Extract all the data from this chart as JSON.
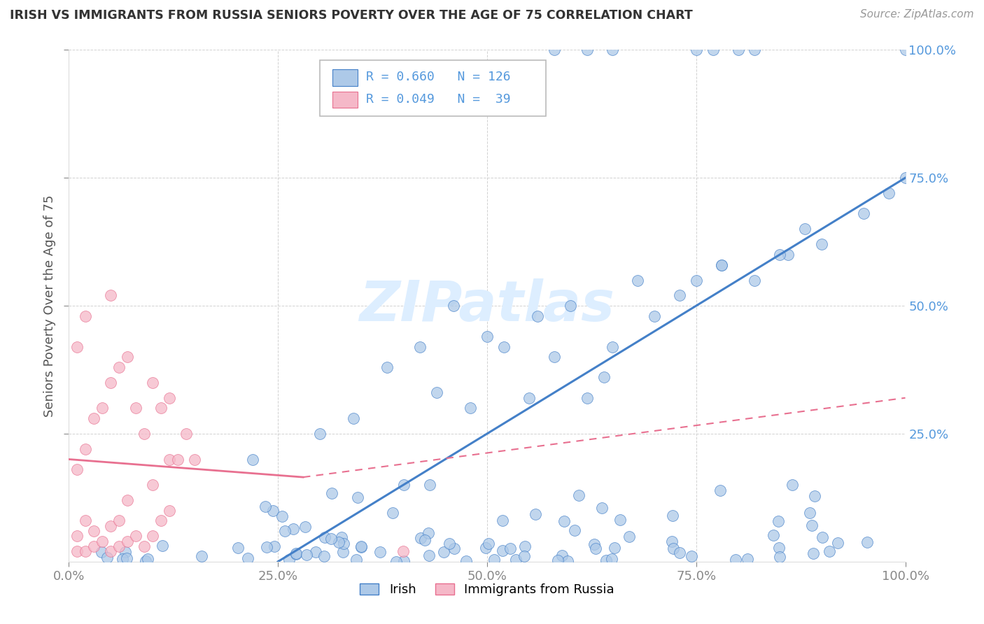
{
  "title": "IRISH VS IMMIGRANTS FROM RUSSIA SENIORS POVERTY OVER THE AGE OF 75 CORRELATION CHART",
  "source": "Source: ZipAtlas.com",
  "ylabel": "Seniors Poverty Over the Age of 75",
  "xlim": [
    0,
    1
  ],
  "ylim": [
    0,
    1
  ],
  "xticks": [
    0,
    0.25,
    0.5,
    0.75,
    1.0
  ],
  "yticks": [
    0.25,
    0.5,
    0.75,
    1.0
  ],
  "xticklabels": [
    "0.0%",
    "25.0%",
    "50.0%",
    "75.0%",
    "100.0%"
  ],
  "yticklabels_right": [
    "25.0%",
    "50.0%",
    "75.0%",
    "100.0%"
  ],
  "legend_line1": "R = 0.660   N = 126",
  "legend_line2": "R = 0.049   N =  39",
  "series1_color": "#adc9e8",
  "series2_color": "#f5b8c8",
  "trend1_color": "#4480c8",
  "trend2_color": "#e87090",
  "tick_color": "#5599dd",
  "title_color": "#333333",
  "source_color": "#999999",
  "ylabel_color": "#555555",
  "watermark_color": "#ddeeff",
  "trend1_x0": 0.25,
  "trend1_x1": 1.0,
  "trend1_y0": 0.0,
  "trend1_y1": 0.75,
  "trend2_solid_x0": 0.0,
  "trend2_solid_x1": 0.28,
  "trend2_solid_y0": 0.2,
  "trend2_solid_y1": 0.165,
  "trend2_dash_x0": 0.28,
  "trend2_dash_x1": 1.0,
  "trend2_dash_y0": 0.165,
  "trend2_dash_y1": 0.32
}
